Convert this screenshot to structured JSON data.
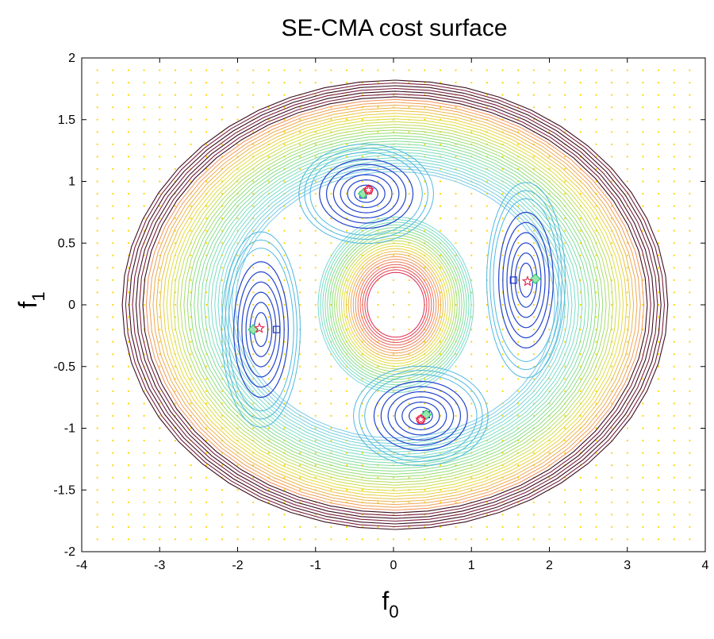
{
  "chart_data": {
    "type": "contour",
    "title": "SE-CMA cost surface",
    "xlabel": "f",
    "xlabel_sub": "0",
    "ylabel": "f",
    "ylabel_sub": "1",
    "xlim": [
      -4,
      4
    ],
    "ylim": [
      -2,
      2
    ],
    "xticks": [
      -4,
      -3,
      -2,
      -1,
      0,
      1,
      2,
      3,
      4
    ],
    "yticks": [
      -2,
      -1.5,
      -1,
      -0.5,
      0,
      0.5,
      1,
      1.5,
      2
    ],
    "xtick_labels": [
      "-4",
      "-3",
      "-2",
      "-1",
      "0",
      "1",
      "2",
      "3",
      "4"
    ],
    "ytick_labels": [
      "-2",
      "-1.5",
      "-1",
      "-0.5",
      "0",
      "0.5",
      "1",
      "1.5",
      "2"
    ],
    "minima": [
      {
        "label": "upper",
        "center": [
          -0.35,
          0.9
        ]
      },
      {
        "label": "right",
        "center": [
          1.7,
          0.2
        ]
      },
      {
        "label": "left",
        "center": [
          -1.7,
          -0.2
        ]
      },
      {
        "label": "lower",
        "center": [
          0.35,
          -0.9
        ]
      }
    ],
    "markers": {
      "star": [
        [
          -0.32,
          0.93
        ],
        [
          1.72,
          0.19
        ],
        [
          -1.72,
          -0.19
        ],
        [
          0.35,
          -0.93
        ]
      ],
      "circle": [
        [
          -0.32,
          0.93
        ],
        [
          0.35,
          -0.93
        ]
      ],
      "diamond": [
        [
          -0.39,
          0.9
        ],
        [
          1.82,
          0.21
        ],
        [
          -1.8,
          -0.2
        ],
        [
          0.42,
          -0.89
        ]
      ],
      "square": [
        [
          -0.39,
          0.89
        ],
        [
          1.54,
          0.2
        ],
        [
          -1.5,
          -0.2
        ],
        [
          0.42,
          -0.89
        ]
      ]
    },
    "grid_dots": {
      "x_step": 0.2,
      "y_step": 0.1
    },
    "colors": {
      "grid_dot": "#ffd400",
      "star": "#e8204a",
      "circle": "#e8204a",
      "diamond": "#33cc66",
      "square": "#1a33cc",
      "outer_dark": "#301018",
      "well_blue": "#2244cc"
    }
  }
}
